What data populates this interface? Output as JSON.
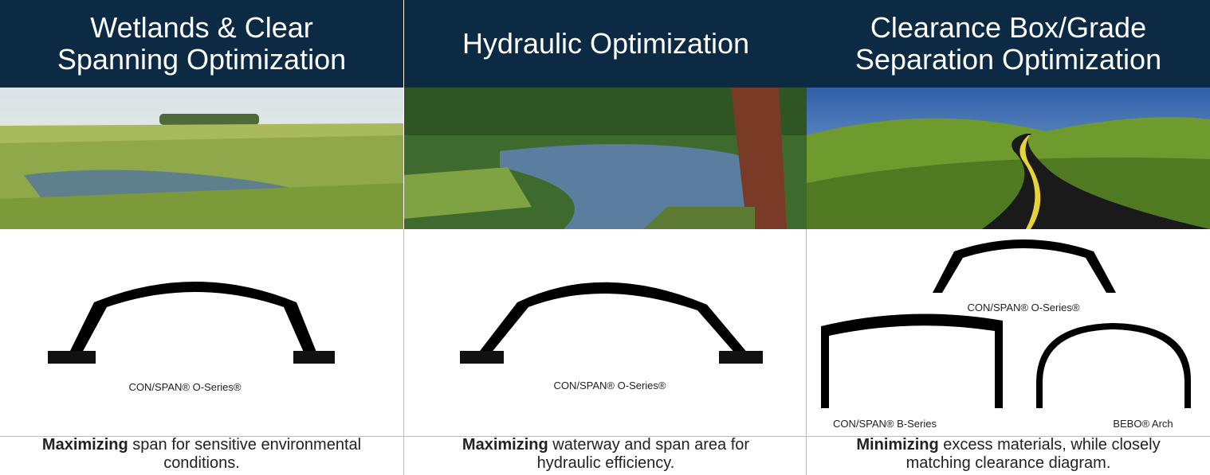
{
  "columns": [
    {
      "heading": "Wetlands & Clear Spanning Optimization",
      "captions": [
        "CON/SPAN® O-Series®"
      ],
      "bold": "Maximizing",
      "text": "span for sensitive environmental conditions."
    },
    {
      "heading": "Hydraulic Optimization",
      "captions": [
        "CON/SPAN® O-Series®"
      ],
      "bold": "Maximizing",
      "text": "waterway and span area for hydraulic efficiency."
    },
    {
      "heading": "Clearance Box/Grade Separation Optimization",
      "captions": [
        "CON/SPAN® O-Series®",
        "CON/SPAN® B-Series",
        "BEBO® Arch"
      ],
      "bold": "Minimizing",
      "text": "excess materials, while closely matching clearance diagram."
    }
  ]
}
